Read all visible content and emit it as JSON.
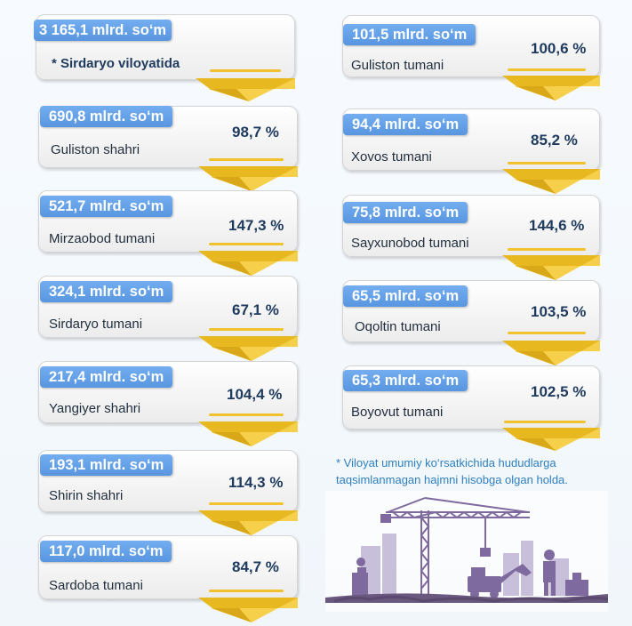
{
  "colors": {
    "pill_blue": "#5b9bd5",
    "ribbon_yellow": "#f4c430",
    "text_dark": "#1e3a5f",
    "footnote_blue": "#2e7fc1",
    "silhouette_purple": "#7e6a9e"
  },
  "total": {
    "amount": "3 165,1 mlrd. so‘m",
    "label": "* Sirdaryo viloyatida"
  },
  "left_column": [
    {
      "amount": "690,8 mlrd. so‘m",
      "name": "Guliston shahri",
      "percent": "98,7 %"
    },
    {
      "amount": "521,7 mlrd. so‘m",
      "name": "Mirzaobod tumani",
      "percent": "147,3 %"
    },
    {
      "amount": "324,1 mlrd. so‘m",
      "name": "Sirdaryo tumani",
      "percent": "67,1 %"
    },
    {
      "amount": "217,4 mlrd. so‘m",
      "name": "Yangiyer shahri",
      "percent": "104,4 %"
    },
    {
      "amount": "193,1 mlrd. so‘m",
      "name": "Shirin shahri",
      "percent": "114,3 %"
    },
    {
      "amount": "117,0 mlrd. so‘m",
      "name": "Sardoba tumani",
      "percent": "84,7 %"
    }
  ],
  "right_column": [
    {
      "amount": "101,5 mlrd. so‘m",
      "name": "Guliston tumani",
      "percent": "100,6 %"
    },
    {
      "amount": "94,4 mlrd. so‘m",
      "name": "Xovos tumani",
      "percent": "85,2 %"
    },
    {
      "amount": "75,8 mlrd. so‘m",
      "name": "Sayxunobod tumani",
      "percent": "144,6 %"
    },
    {
      "amount": "65,5 mlrd. so‘m",
      "name": "Oqoltin tumani",
      "percent": "103,5 %"
    },
    {
      "amount": "65,3 mlrd. so‘m",
      "name": "Boyovut tumani",
      "percent": "102,5 %"
    }
  ],
  "footnote": "* Viloyat umumiy ko‘rsatkichida hududlarga taqsimlanmagan hajmni hisobga olgan holda.",
  "illustration": {
    "icon": "construction-site-icon"
  }
}
